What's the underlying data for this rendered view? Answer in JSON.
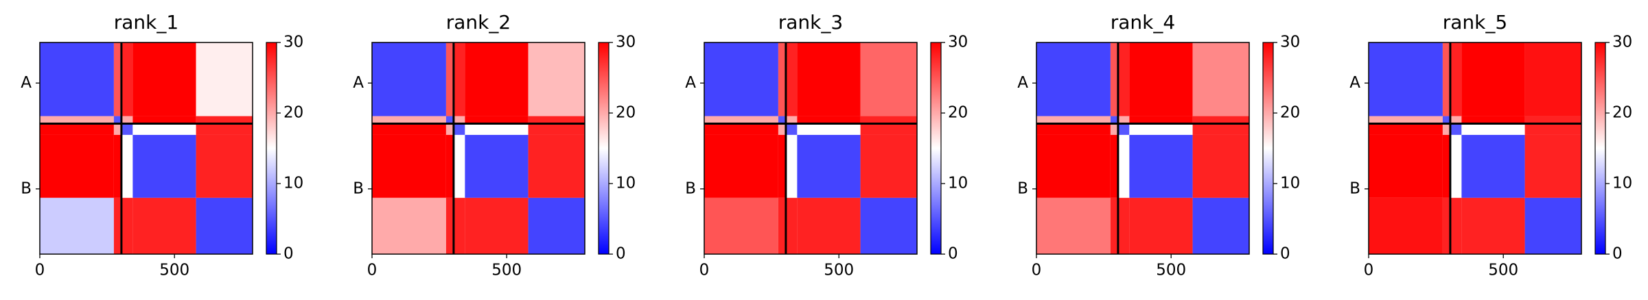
{
  "chart_data": [
    {
      "type": "heatmap",
      "title": "rank_1",
      "colormap": "bwr",
      "clim": [
        0,
        30
      ],
      "cticks": [
        0,
        10,
        20,
        30
      ],
      "xlim": [
        0,
        790
      ],
      "ylim": [
        790,
        0
      ],
      "xticks": [
        0,
        500
      ],
      "yticks": [
        {
          "value": 151.5,
          "label": "A"
        },
        {
          "value": 546.5,
          "label": "B"
        }
      ],
      "chain_breaks": [
        303
      ],
      "edges": [
        0,
        275,
        303,
        345,
        580,
        790
      ],
      "z": [
        [
          4,
          25,
          28,
          30,
          16
        ],
        [
          20,
          5,
          20,
          30,
          28
        ],
        [
          30,
          20,
          5,
          15,
          28
        ],
        [
          30,
          30,
          15,
          4,
          28
        ],
        [
          12,
          28,
          28,
          28,
          4
        ]
      ]
    },
    {
      "type": "heatmap",
      "title": "rank_2",
      "colormap": "bwr",
      "clim": [
        0,
        30
      ],
      "cticks": [
        0,
        10,
        20,
        30
      ],
      "xlim": [
        0,
        790
      ],
      "ylim": [
        790,
        0
      ],
      "xticks": [
        0,
        500
      ],
      "yticks": [
        {
          "value": 151.5,
          "label": "A"
        },
        {
          "value": 546.5,
          "label": "B"
        }
      ],
      "chain_breaks": [
        303
      ],
      "edges": [
        0,
        275,
        303,
        345,
        580,
        790
      ],
      "z": [
        [
          4,
          25,
          28,
          30,
          19
        ],
        [
          20,
          5,
          20,
          30,
          28
        ],
        [
          30,
          20,
          5,
          15,
          28
        ],
        [
          30,
          30,
          15,
          4,
          28
        ],
        [
          20,
          28,
          28,
          28,
          4
        ]
      ]
    },
    {
      "type": "heatmap",
      "title": "rank_3",
      "colormap": "bwr",
      "clim": [
        0,
        30
      ],
      "cticks": [
        0,
        10,
        20,
        30
      ],
      "xlim": [
        0,
        790
      ],
      "ylim": [
        790,
        0
      ],
      "xticks": [
        0,
        500
      ],
      "yticks": [
        {
          "value": 151.5,
          "label": "A"
        },
        {
          "value": 546.5,
          "label": "B"
        }
      ],
      "chain_breaks": [
        303
      ],
      "edges": [
        0,
        275,
        303,
        345,
        580,
        790
      ],
      "z": [
        [
          4,
          25,
          28,
          30,
          24
        ],
        [
          20,
          5,
          20,
          30,
          28
        ],
        [
          30,
          20,
          5,
          15,
          28
        ],
        [
          30,
          30,
          15,
          4,
          28
        ],
        [
          25,
          28,
          28,
          28,
          4
        ]
      ]
    },
    {
      "type": "heatmap",
      "title": "rank_4",
      "colormap": "bwr",
      "clim": [
        0,
        30
      ],
      "cticks": [
        0,
        10,
        20,
        30
      ],
      "xlim": [
        0,
        790
      ],
      "ylim": [
        790,
        0
      ],
      "xticks": [
        0,
        500
      ],
      "yticks": [
        {
          "value": 151.5,
          "label": "A"
        },
        {
          "value": 546.5,
          "label": "B"
        }
      ],
      "chain_breaks": [
        303
      ],
      "edges": [
        0,
        275,
        303,
        345,
        580,
        790
      ],
      "z": [
        [
          4,
          25,
          28,
          30,
          22
        ],
        [
          20,
          5,
          20,
          30,
          28
        ],
        [
          30,
          20,
          5,
          15,
          28
        ],
        [
          30,
          30,
          15,
          4,
          28
        ],
        [
          23,
          28,
          28,
          28,
          4
        ]
      ]
    },
    {
      "type": "heatmap",
      "title": "rank_5",
      "colormap": "bwr",
      "clim": [
        0,
        30
      ],
      "cticks": [
        0,
        10,
        20,
        30
      ],
      "xlim": [
        0,
        790
      ],
      "ylim": [
        790,
        0
      ],
      "xticks": [
        0,
        500
      ],
      "yticks": [
        {
          "value": 151.5,
          "label": "A"
        },
        {
          "value": 546.5,
          "label": "B"
        }
      ],
      "chain_breaks": [
        303
      ],
      "edges": [
        0,
        275,
        303,
        345,
        580,
        790
      ],
      "z": [
        [
          4,
          25,
          28,
          30,
          29
        ],
        [
          20,
          5,
          20,
          30,
          28
        ],
        [
          30,
          20,
          5,
          15,
          28
        ],
        [
          30,
          30,
          15,
          4,
          28
        ],
        [
          29,
          28,
          28,
          28,
          4
        ]
      ]
    }
  ]
}
